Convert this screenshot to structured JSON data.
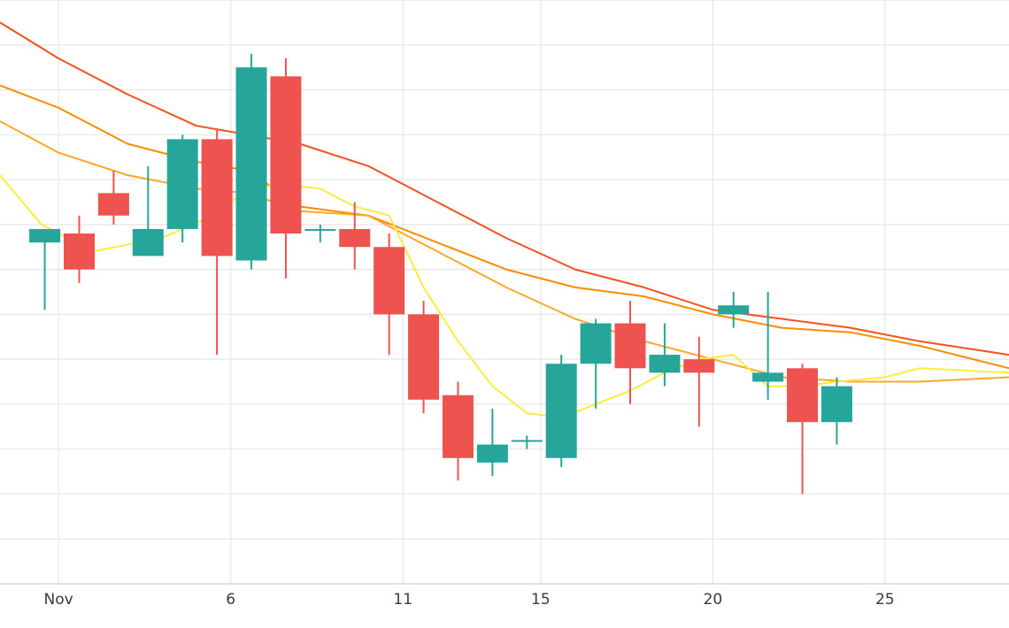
{
  "chart_data": {
    "type": "candlestick",
    "title": "",
    "xlabel": "",
    "ylabel": "",
    "x_tick_labels": [
      {
        "label": "Nov",
        "day": 1
      },
      {
        "label": "6",
        "day": 6
      },
      {
        "label": "11",
        "day": 11
      },
      {
        "label": "15",
        "day": 15
      },
      {
        "label": "20",
        "day": 20
      },
      {
        "label": "25",
        "day": 25
      }
    ],
    "xlim": [
      -0.7,
      28.6
    ],
    "ylim": [
      0,
      13
    ],
    "grid": true,
    "colors": {
      "up": "#26a69a",
      "down": "#ef5350",
      "grid": "#e6e6e6",
      "axis": "#d0d0d0"
    },
    "candles": [
      {
        "day": 0.6,
        "open": 7.6,
        "high": 7.9,
        "low": 6.1,
        "close": 7.9
      },
      {
        "day": 1.6,
        "open": 7.8,
        "high": 8.2,
        "low": 6.7,
        "close": 7.0
      },
      {
        "day": 2.6,
        "open": 8.7,
        "high": 9.2,
        "low": 8.0,
        "close": 8.2
      },
      {
        "day": 3.6,
        "open": 7.3,
        "high": 9.3,
        "low": 7.3,
        "close": 7.9
      },
      {
        "day": 4.6,
        "open": 7.9,
        "high": 10.0,
        "low": 7.6,
        "close": 9.9
      },
      {
        "day": 5.6,
        "open": 9.9,
        "high": 10.1,
        "low": 5.1,
        "close": 7.3
      },
      {
        "day": 6.6,
        "open": 7.2,
        "high": 11.8,
        "low": 7.0,
        "close": 11.5
      },
      {
        "day": 7.6,
        "open": 11.3,
        "high": 11.7,
        "low": 6.8,
        "close": 7.8
      },
      {
        "day": 8.6,
        "open": 7.9,
        "high": 8.0,
        "low": 7.6,
        "close": 7.9
      },
      {
        "day": 9.6,
        "open": 7.9,
        "high": 8.5,
        "low": 7.0,
        "close": 7.5
      },
      {
        "day": 10.6,
        "open": 7.5,
        "high": 7.8,
        "low": 5.1,
        "close": 6.0
      },
      {
        "day": 11.6,
        "open": 6.0,
        "high": 6.3,
        "low": 3.8,
        "close": 4.1
      },
      {
        "day": 12.6,
        "open": 4.2,
        "high": 4.5,
        "low": 2.3,
        "close": 2.8
      },
      {
        "day": 13.6,
        "open": 2.7,
        "high": 3.9,
        "low": 2.4,
        "close": 3.1
      },
      {
        "day": 14.6,
        "open": 3.2,
        "high": 3.3,
        "low": 3.0,
        "close": 3.2
      },
      {
        "day": 15.6,
        "open": 2.8,
        "high": 5.1,
        "low": 2.6,
        "close": 4.9
      },
      {
        "day": 16.6,
        "open": 4.9,
        "high": 5.9,
        "low": 3.9,
        "close": 5.8
      },
      {
        "day": 17.6,
        "open": 5.8,
        "high": 6.3,
        "low": 4.0,
        "close": 4.8
      },
      {
        "day": 18.6,
        "open": 4.7,
        "high": 5.8,
        "low": 4.4,
        "close": 5.1
      },
      {
        "day": 19.6,
        "open": 5.0,
        "high": 5.5,
        "low": 3.5,
        "close": 4.7
      },
      {
        "day": 20.6,
        "open": 6.0,
        "high": 6.5,
        "low": 5.7,
        "close": 6.2
      },
      {
        "day": 21.6,
        "open": 4.5,
        "high": 6.5,
        "low": 4.1,
        "close": 4.7
      },
      {
        "day": 22.6,
        "open": 4.8,
        "high": 4.9,
        "low": 2.0,
        "close": 3.6
      },
      {
        "day": 23.6,
        "open": 3.6,
        "high": 4.6,
        "low": 3.1,
        "close": 4.4
      }
    ],
    "moving_averages": [
      {
        "color": "#f4511e",
        "points": [
          [
            -0.7,
            12.5
          ],
          [
            1,
            11.7
          ],
          [
            3,
            10.9
          ],
          [
            5,
            10.2
          ],
          [
            6.5,
            10.0
          ],
          [
            8,
            9.8
          ],
          [
            10,
            9.3
          ],
          [
            12,
            8.5
          ],
          [
            14,
            7.7
          ],
          [
            16,
            7.0
          ],
          [
            18,
            6.6
          ],
          [
            20,
            6.1
          ],
          [
            22,
            5.9
          ],
          [
            24,
            5.7
          ],
          [
            26,
            5.4
          ],
          [
            28.6,
            5.1
          ]
        ]
      },
      {
        "color": "#fb8c00",
        "points": [
          [
            -0.7,
            11.1
          ],
          [
            1,
            10.6
          ],
          [
            3,
            9.8
          ],
          [
            5,
            9.4
          ],
          [
            6.5,
            9.2
          ],
          [
            8,
            8.4
          ],
          [
            10,
            8.2
          ],
          [
            12,
            7.6
          ],
          [
            14,
            7.0
          ],
          [
            16,
            6.6
          ],
          [
            18,
            6.4
          ],
          [
            20,
            6.0
          ],
          [
            22,
            5.7
          ],
          [
            24,
            5.6
          ],
          [
            26,
            5.3
          ],
          [
            28.6,
            4.8
          ]
        ]
      },
      {
        "color": "#ffa726",
        "points": [
          [
            -0.7,
            10.3
          ],
          [
            1,
            9.6
          ],
          [
            3,
            9.1
          ],
          [
            5,
            8.8
          ],
          [
            6.5,
            8.7
          ],
          [
            8,
            8.3
          ],
          [
            10,
            8.2
          ],
          [
            12,
            7.4
          ],
          [
            14,
            6.6
          ],
          [
            16,
            5.9
          ],
          [
            18,
            5.4
          ],
          [
            20,
            5.0
          ],
          [
            22,
            4.6
          ],
          [
            24,
            4.5
          ],
          [
            26,
            4.5
          ],
          [
            28.6,
            4.6
          ]
        ]
      },
      {
        "color": "#ffeb3b",
        "points": [
          [
            -0.7,
            9.1
          ],
          [
            0.5,
            8.0
          ],
          [
            2,
            7.4
          ],
          [
            4,
            7.7
          ],
          [
            5.5,
            8.2
          ],
          [
            6.5,
            8.8
          ],
          [
            7.5,
            8.9
          ],
          [
            8.6,
            8.8
          ],
          [
            9.6,
            8.4
          ],
          [
            10.6,
            8.2
          ],
          [
            11.6,
            6.6
          ],
          [
            12.6,
            5.4
          ],
          [
            13.6,
            4.4
          ],
          [
            14.6,
            3.8
          ],
          [
            15.6,
            3.7
          ],
          [
            16.6,
            4.0
          ],
          [
            17.6,
            4.3
          ],
          [
            18.6,
            4.7
          ],
          [
            19.6,
            5.0
          ],
          [
            20.6,
            5.1
          ],
          [
            21.6,
            4.4
          ],
          [
            22.6,
            4.4
          ],
          [
            23.6,
            4.5
          ],
          [
            25,
            4.6
          ],
          [
            26,
            4.8
          ],
          [
            28.6,
            4.7
          ]
        ]
      }
    ]
  }
}
